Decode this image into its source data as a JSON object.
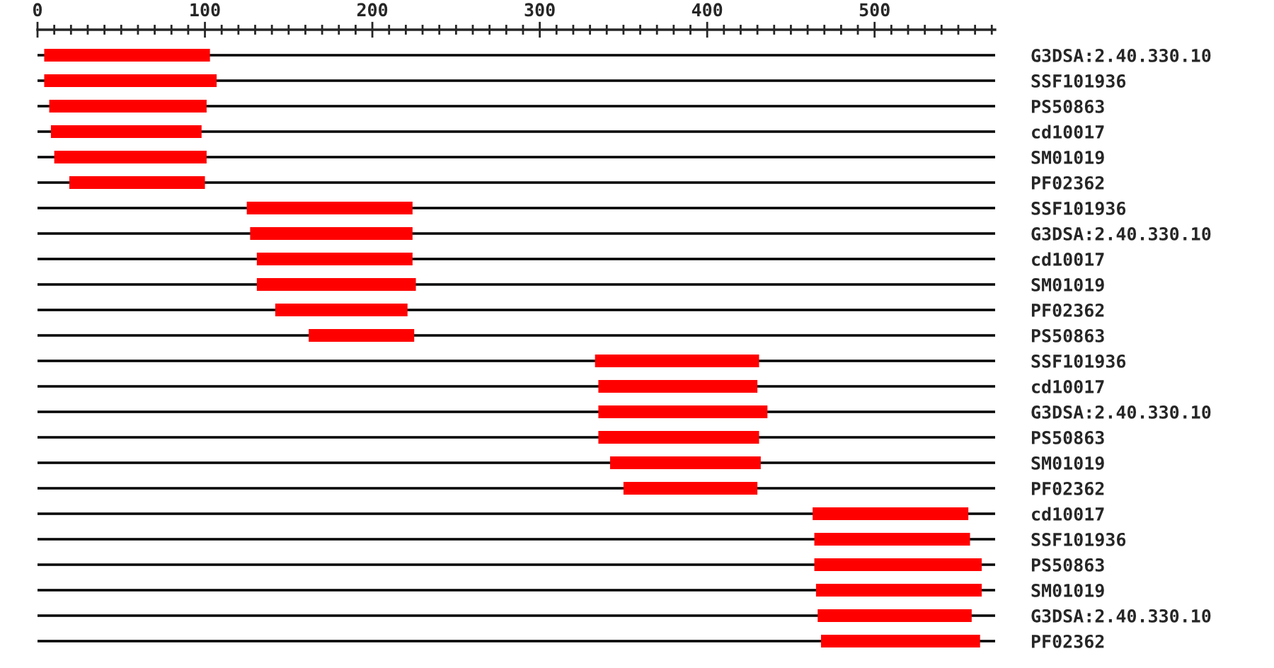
{
  "chart_data": {
    "type": "bar",
    "orientation": "horizontal",
    "categories": [
      "G3DSA:2.40.330.10",
      "SSF101936",
      "PS50863",
      "cd10017",
      "SM01019",
      "PF02362",
      "SSF101936",
      "G3DSA:2.40.330.10",
      "cd10017",
      "SM01019",
      "PF02362",
      "PS50863",
      "SSF101936",
      "cd10017",
      "G3DSA:2.40.330.10",
      "PS50863",
      "SM01019",
      "PF02362",
      "cd10017",
      "SSF101936",
      "PS50863",
      "SM01019",
      "G3DSA:2.40.330.10",
      "PF02362"
    ],
    "base": [
      4,
      4,
      7,
      8,
      10,
      19,
      125,
      127,
      131,
      131,
      142,
      162,
      333,
      335,
      335,
      335,
      342,
      350,
      463,
      464,
      464,
      465,
      466,
      468
    ],
    "values": [
      99,
      103,
      94,
      90,
      91,
      81,
      99,
      97,
      93,
      95,
      79,
      63,
      98,
      95,
      101,
      96,
      90,
      80,
      93,
      93,
      100,
      99,
      92,
      95
    ],
    "color": "#ff0000",
    "xlim": [
      0,
      572
    ],
    "xticks": [
      0,
      {
        "value": 10,
        "label": null
      },
      {
        "value": 20,
        "label": null
      },
      {
        "value": 30,
        "label": null
      },
      {
        "value": 40,
        "label": null
      },
      {
        "value": 50,
        "label": null
      },
      {
        "value": 60,
        "label": null
      },
      {
        "value": 70,
        "label": null
      },
      {
        "value": 80,
        "label": null
      },
      {
        "value": 90,
        "label": null
      },
      100,
      {
        "value": 110,
        "label": null
      },
      {
        "value": 120,
        "label": null
      },
      {
        "value": 130,
        "label": null
      },
      {
        "value": 140,
        "label": null
      },
      {
        "value": 150,
        "label": null
      },
      {
        "value": 160,
        "label": null
      },
      {
        "value": 170,
        "label": null
      },
      {
        "value": 180,
        "label": null
      },
      {
        "value": 190,
        "label": null
      },
      200,
      {
        "value": 210,
        "label": null
      },
      {
        "value": 220,
        "label": null
      },
      {
        "value": 230,
        "label": null
      },
      {
        "value": 240,
        "label": null
      },
      {
        "value": 250,
        "label": null
      },
      {
        "value": 260,
        "label": null
      },
      {
        "value": 270,
        "label": null
      },
      {
        "value": 280,
        "label": null
      },
      {
        "value": 290,
        "label": null
      },
      300,
      {
        "value": 310,
        "label": null
      },
      {
        "value": 320,
        "label": null
      },
      {
        "value": 330,
        "label": null
      },
      {
        "value": 340,
        "label": null
      },
      {
        "value": 350,
        "label": null
      },
      {
        "value": 360,
        "label": null
      },
      {
        "value": 370,
        "label": null
      },
      {
        "value": 380,
        "label": null
      },
      {
        "value": 390,
        "label": null
      },
      400,
      {
        "value": 410,
        "label": null
      },
      {
        "value": 420,
        "label": null
      },
      {
        "value": 430,
        "label": null
      },
      {
        "value": 440,
        "label": null
      },
      {
        "value": 450,
        "label": null
      },
      {
        "value": 460,
        "label": null
      },
      {
        "value": 470,
        "label": null
      },
      {
        "value": 480,
        "label": null
      },
      {
        "value": 490,
        "label": null
      },
      500,
      {
        "value": 510,
        "label": null
      },
      {
        "value": 520,
        "label": null
      },
      {
        "value": 530,
        "label": null
      },
      {
        "value": 540,
        "label": null
      },
      {
        "value": 550,
        "label": null
      },
      {
        "value": 560,
        "label": null
      },
      {
        "value": 570,
        "label": null
      }
    ],
    "grid": "y"
  }
}
